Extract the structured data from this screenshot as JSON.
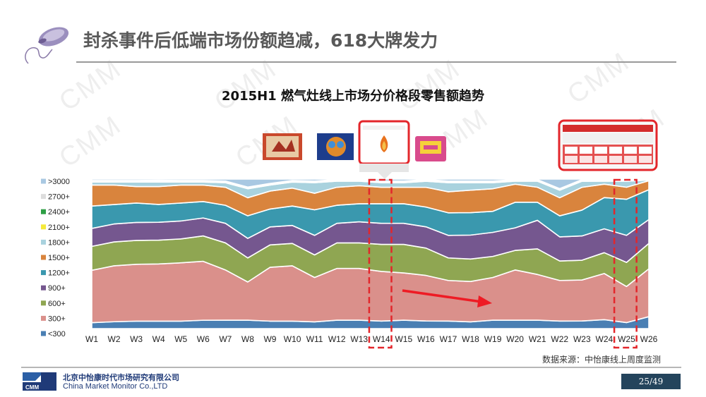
{
  "slide": {
    "title": "封杀事件后低端市场份额趋减，618大牌发力",
    "watermark": "CMM",
    "source_note": "数据来源：中怡康线上周度监测",
    "page_number": "25/49"
  },
  "footer": {
    "company_cn": "北京中怡康时代市场研究有限公司",
    "company_en": "China Market Monitor Co.,LTD",
    "logo_text": "CMM"
  },
  "colors": {
    "<300": "#4a7fb3",
    "300+": "#da908b",
    "600+": "#8fa652",
    "900+": "#75578f",
    "1200+": "#3a98ae",
    "1500+": "#d9843d",
    "1800+": "#a9d2de",
    "2100+": "#f5ea3a",
    "2400+": "#2e9f45",
    ">3000": "#a9c8e2",
    "highlight": "#e3262b",
    "arrow": "#ee1b24"
  },
  "chart_data": {
    "type": "area",
    "stacked": true,
    "normalized_percent": true,
    "title": "2015H1 燃气灶线上市场分价格段零售额趋势",
    "xlabel": "",
    "ylabel": "",
    "ylim": [
      0,
      100
    ],
    "legend_position": "left",
    "categories": [
      "W1",
      "W2",
      "W3",
      "W4",
      "W5",
      "W6",
      "W7",
      "W8",
      "W9",
      "W10",
      "W11",
      "W12",
      "W13",
      "W14",
      "W15",
      "W16",
      "W17",
      "W18",
      "W19",
      "W20",
      "W21",
      "W22",
      "W23",
      "W24",
      "W25",
      "W26"
    ],
    "series": [
      {
        "name": "<300",
        "values": [
          4,
          4.6,
          5,
          5,
          5,
          5.6,
          5.6,
          5.6,
          5,
          5,
          4.5,
          5.6,
          5.6,
          5,
          5.6,
          5,
          5,
          4.5,
          5.6,
          5.6,
          5.6,
          5,
          5,
          6,
          4,
          8
        ]
      },
      {
        "name": "300+",
        "values": [
          35,
          37.4,
          38,
          38.4,
          39,
          39.4,
          33.4,
          25.4,
          36,
          37,
          29.5,
          34.4,
          34.4,
          33,
          31.4,
          30,
          27,
          27,
          28.4,
          33.4,
          30.4,
          27,
          27,
          31,
          24,
          32
        ]
      },
      {
        "name": "600+",
        "values": [
          16,
          16,
          16,
          16,
          16,
          17,
          18,
          16,
          15,
          15,
          15,
          17,
          17,
          18,
          19,
          18,
          15,
          15,
          14,
          13,
          17,
          13,
          13,
          14,
          16,
          17
        ]
      },
      {
        "name": "900+",
        "values": [
          12,
          12,
          12,
          12,
          12,
          12,
          13,
          13,
          12,
          12,
          13,
          13,
          14,
          14,
          14,
          14,
          15,
          16,
          16,
          15,
          19,
          16,
          16,
          16,
          18,
          16
        ]
      },
      {
        "name": "1200+",
        "values": [
          15,
          13,
          13,
          12,
          12,
          11,
          12,
          15,
          12,
          13,
          17,
          12,
          12,
          13,
          13,
          13,
          15,
          15,
          14,
          17,
          12,
          14,
          17,
          21,
          24,
          20
        ]
      },
      {
        "name": "1500+",
        "values": [
          14,
          13,
          11,
          12,
          12,
          11,
          12,
          12,
          12,
          12,
          11,
          12,
          12,
          11,
          11,
          13,
          14,
          15,
          15,
          12,
          10,
          12,
          15,
          9,
          8,
          6
        ]
      },
      {
        "name": "1800+",
        "values": [
          2,
          2,
          3,
          3,
          2,
          2,
          3,
          6,
          4,
          4,
          7,
          4,
          3,
          3,
          3,
          4,
          6,
          5,
          4,
          2,
          4,
          5,
          4,
          2,
          4,
          0.5
        ]
      },
      {
        "name": "2100+",
        "values": [
          0.5,
          0.5,
          0.5,
          0.6,
          0.5,
          0.5,
          0.5,
          0.5,
          0.5,
          0.5,
          0.5,
          0.5,
          0.5,
          0.5,
          0.5,
          0.5,
          0.5,
          0.5,
          0.5,
          0.5,
          0.5,
          0.5,
          0.5,
          0.5,
          0.5,
          0.3
        ]
      },
      {
        "name": "2400+",
        "values": [
          0.6,
          0.6,
          0.6,
          0.6,
          0.6,
          0.6,
          0.6,
          0.6,
          0.6,
          0.6,
          0.6,
          0.6,
          0.6,
          0.6,
          0.6,
          0.6,
          0.6,
          0.6,
          0.6,
          0.6,
          0.6,
          0.6,
          0.6,
          0.6,
          0.6,
          0.3
        ]
      },
      {
        "name": "2700+",
        "values": [
          0,
          0,
          0,
          0,
          0,
          0,
          0,
          0,
          0,
          0,
          0,
          0,
          0,
          0,
          0,
          0,
          0,
          0,
          0,
          0,
          0,
          0,
          0,
          0,
          0,
          0
        ]
      },
      {
        "name": ">3000",
        "values": [
          0.9,
          0.9,
          0.9,
          0.8,
          0.9,
          0.9,
          1.3,
          5.3,
          2.9,
          0.9,
          1.3,
          0.3,
          0.3,
          1.3,
          1.3,
          0.3,
          1.3,
          1.3,
          1.3,
          0.3,
          0.3,
          6.3,
          0.3,
          0.3,
          0.3,
          0
        ]
      }
    ],
    "legend_order": [
      ">3000",
      "2700+",
      "2400+",
      "2100+",
      "1800+",
      "1500+",
      "1200+",
      "900+",
      "600+",
      "300+",
      "<300"
    ],
    "highlights": [
      {
        "start": "W14",
        "end": "W14"
      },
      {
        "start": "W25",
        "end": "W25"
      }
    ]
  }
}
